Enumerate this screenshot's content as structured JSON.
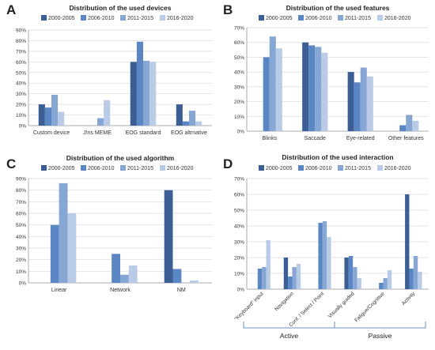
{
  "series_names": [
    "2000-2005",
    "2006-2010",
    "2011-2015",
    "2016-2020"
  ],
  "series_colors": [
    "#3b5e94",
    "#5b86c4",
    "#86a6d4",
    "#b9cbe6"
  ],
  "chart_data": [
    {
      "panel": "A",
      "type": "bar",
      "title": "Distribution of the used devices",
      "categories": [
        "Custom device",
        "J!ns MEME",
        "EOG standard",
        "EOG altrnative"
      ],
      "ylim": [
        0,
        90
      ],
      "yticks": [
        "0%",
        "10%",
        "20%",
        "30%",
        "40%",
        "50%",
        "60%",
        "70%",
        "80%",
        "90%"
      ],
      "legend": "top",
      "grid": true,
      "series": [
        {
          "name": "2000-2005",
          "values": [
            20,
            0,
            60,
            20
          ]
        },
        {
          "name": "2006-2010",
          "values": [
            17,
            0,
            79,
            4
          ]
        },
        {
          "name": "2011-2015",
          "values": [
            29,
            7,
            61,
            14
          ]
        },
        {
          "name": "2016-2020",
          "values": [
            13,
            24,
            60,
            4
          ]
        }
      ]
    },
    {
      "panel": "B",
      "type": "bar",
      "title": "Distribution of the used features",
      "categories": [
        "Blinks",
        "Saccade",
        "Eye-related",
        "Other features"
      ],
      "ylim": [
        0,
        70
      ],
      "yticks": [
        "0%",
        "10%",
        "20%",
        "30%",
        "40%",
        "50%",
        "60%",
        "70%"
      ],
      "legend": "top",
      "grid": true,
      "series": [
        {
          "name": "2000-2005",
          "values": [
            0,
            60,
            40,
            0
          ]
        },
        {
          "name": "2006-2010",
          "values": [
            50,
            58,
            33,
            4
          ]
        },
        {
          "name": "2011-2015",
          "values": [
            64,
            57,
            43,
            11
          ]
        },
        {
          "name": "2016-2020",
          "values": [
            56,
            53,
            37,
            7
          ]
        }
      ]
    },
    {
      "panel": "C",
      "type": "bar",
      "title": "Distribution of the used algorithm",
      "categories": [
        "Linear",
        "Network",
        "NM"
      ],
      "ylim": [
        0,
        90
      ],
      "yticks": [
        "0%",
        "10%",
        "20%",
        "30%",
        "40%",
        "50%",
        "60%",
        "70%",
        "80%",
        "90%"
      ],
      "legend": "top",
      "grid": true,
      "series": [
        {
          "name": "2000-2005",
          "values": [
            0,
            0,
            80
          ]
        },
        {
          "name": "2006-2010",
          "values": [
            50,
            25,
            12
          ]
        },
        {
          "name": "2011-2015",
          "values": [
            86,
            7,
            0
          ]
        },
        {
          "name": "2016-2020",
          "values": [
            60,
            15,
            2
          ]
        }
      ]
    },
    {
      "panel": "D",
      "type": "bar",
      "title": "Distribution of the used interaction",
      "categories": [
        "\"Keyboard\" input",
        "Navigation",
        "Conf. / Select / Point",
        "Visually guided",
        "Fatigue/Cognitive",
        "Activity"
      ],
      "groups": [
        {
          "label": "Active",
          "from": 0,
          "to": 3
        },
        {
          "label": "Passive",
          "from": 3,
          "to": 6
        }
      ],
      "ylim": [
        0,
        70
      ],
      "yticks": [
        "0%",
        "10%",
        "20%",
        "30%",
        "40%",
        "50%",
        "60%",
        "70%"
      ],
      "legend": "top",
      "grid": true,
      "series": [
        {
          "name": "2000-2005",
          "values": [
            0,
            20,
            0,
            20,
            0,
            60
          ]
        },
        {
          "name": "2006-2010",
          "values": [
            13,
            8,
            42,
            21,
            4,
            13
          ]
        },
        {
          "name": "2011-2015",
          "values": [
            14,
            14,
            43,
            14,
            7,
            21
          ]
        },
        {
          "name": "2016-2020",
          "values": [
            31,
            16,
            33,
            7,
            12,
            11
          ]
        }
      ]
    }
  ]
}
